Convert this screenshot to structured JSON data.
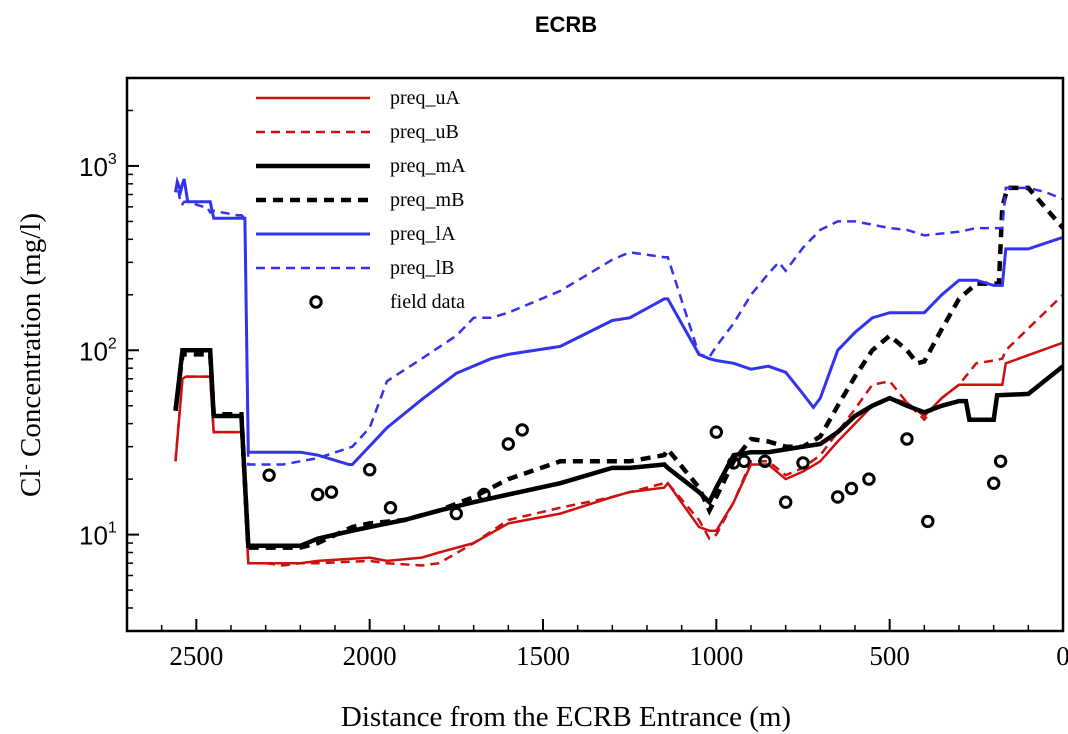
{
  "chart_data": {
    "type": "line",
    "title": "ECRB",
    "xlabel": "Distance from the ECRB Entrance (m)",
    "ylabel": "Concentration (mg/l)",
    "ylabel_ion": "Cl",
    "ylabel_sup": "-",
    "xlim": [
      2700,
      0
    ],
    "ylim": [
      3,
      3000
    ],
    "yscale": "log",
    "x_ticks": [
      "2500",
      "2000",
      "1500",
      "1000",
      "500",
      "0"
    ],
    "y_ticks": [
      {
        "base": "10",
        "exp": "1"
      },
      {
        "base": "10",
        "exp": "2"
      },
      {
        "base": "10",
        "exp": "3"
      }
    ],
    "legend_position": "top-left",
    "series": [
      {
        "name": "preq_uA",
        "color": "#cc1111",
        "style": "solid",
        "width": 2.5,
        "x": [
          2560,
          2540,
          2530,
          2480,
          2460,
          2450,
          2380,
          2370,
          2350,
          2300,
          2250,
          2200,
          2150,
          2000,
          1950,
          1850,
          1800,
          1700,
          1600,
          1450,
          1300,
          1250,
          1150,
          1140,
          1050,
          1020,
          1000,
          950,
          900,
          850,
          800,
          750,
          700,
          650,
          600,
          550,
          500,
          450,
          400,
          350,
          300,
          250,
          200,
          175,
          165,
          0
        ],
        "y": [
          25,
          70,
          72,
          72,
          72,
          36,
          36,
          36,
          7,
          7,
          7,
          7,
          7.2,
          7.5,
          7.2,
          7.5,
          8,
          9,
          11.5,
          13,
          16,
          17,
          18,
          19,
          11,
          10.5,
          10.5,
          15,
          24,
          24,
          20,
          22,
          25,
          32,
          40,
          50,
          55,
          52,
          44,
          55,
          65,
          65,
          65,
          65,
          85,
          110
        ]
      },
      {
        "name": "preq_uB",
        "color": "#cc1111",
        "style": "dashed",
        "width": 2.5,
        "x": [
          2560,
          2540,
          2530,
          2480,
          2460,
          2450,
          2380,
          2370,
          2350,
          2300,
          2250,
          2200,
          2150,
          2000,
          1950,
          1850,
          1800,
          1700,
          1600,
          1450,
          1300,
          1250,
          1150,
          1140,
          1050,
          1020,
          1000,
          950,
          900,
          850,
          800,
          750,
          700,
          650,
          600,
          550,
          500,
          450,
          400,
          350,
          300,
          250,
          200,
          175,
          165,
          0
        ],
        "y": [
          25,
          72,
          72,
          72,
          72,
          36,
          36,
          36,
          7,
          7,
          6.8,
          7,
          7,
          7.2,
          7,
          6.8,
          7,
          9,
          12,
          14,
          16,
          17,
          19,
          19,
          12,
          9.5,
          10,
          15,
          25,
          25,
          21,
          23,
          27,
          36,
          48,
          65,
          68,
          52,
          42,
          55,
          65,
          85,
          88,
          90,
          100,
          200
        ]
      },
      {
        "name": "preq_mA",
        "color": "#000000",
        "style": "solid",
        "width": 4.5,
        "x": [
          2560,
          2540,
          2530,
          2480,
          2460,
          2450,
          2380,
          2370,
          2350,
          2300,
          2250,
          2200,
          2150,
          2050,
          2000,
          1900,
          1800,
          1700,
          1600,
          1450,
          1300,
          1250,
          1150,
          1140,
          1050,
          1020,
          1000,
          950,
          900,
          850,
          800,
          750,
          700,
          650,
          600,
          550,
          500,
          450,
          400,
          350,
          300,
          280,
          270,
          200,
          190,
          100,
          0
        ],
        "y": [
          47,
          100,
          100,
          100,
          100,
          44,
          44,
          44,
          8.7,
          8.7,
          8.7,
          8.7,
          9.5,
          10.5,
          11,
          12,
          13.5,
          15,
          16.5,
          19,
          23,
          23,
          24,
          23,
          17,
          15,
          18,
          27,
          28,
          28,
          29,
          30,
          31,
          36,
          44,
          50,
          55,
          50,
          46,
          50,
          53,
          53,
          42,
          42,
          57,
          58,
          82
        ]
      },
      {
        "name": "preq_mB",
        "color": "#000000",
        "style": "dashed",
        "width": 4.5,
        "x": [
          2560,
          2540,
          2530,
          2480,
          2460,
          2450,
          2380,
          2370,
          2350,
          2300,
          2250,
          2200,
          2150,
          2050,
          2000,
          1900,
          1800,
          1700,
          1600,
          1450,
          1300,
          1250,
          1150,
          1140,
          1050,
          1020,
          1000,
          950,
          900,
          850,
          800,
          750,
          700,
          650,
          600,
          550,
          500,
          450,
          420,
          400,
          350,
          300,
          250,
          200,
          185,
          175,
          160,
          100,
          0
        ],
        "y": [
          47,
          95,
          95,
          95,
          95,
          45,
          45,
          45,
          8.5,
          8.5,
          8.5,
          8.5,
          9,
          11,
          11.5,
          12,
          13.5,
          16,
          20,
          25,
          25,
          25,
          27,
          29,
          18,
          13.5,
          16,
          25,
          33,
          32,
          30,
          30,
          34,
          50,
          72,
          100,
          120,
          100,
          85,
          87,
          130,
          190,
          230,
          230,
          230,
          600,
          760,
          760,
          460
        ]
      },
      {
        "name": "preq_lA",
        "color": "#3333ee",
        "style": "solid",
        "width": 3,
        "x": [
          2560,
          2555,
          2545,
          2540,
          2535,
          2525,
          2480,
          2470,
          2460,
          2450,
          2380,
          2370,
          2360,
          2350,
          2300,
          2250,
          2200,
          2150,
          2060,
          2050,
          1950,
          1850,
          1750,
          1650,
          1600,
          1450,
          1300,
          1250,
          1150,
          1140,
          1050,
          1020,
          1000,
          950,
          900,
          850,
          800,
          750,
          720,
          700,
          650,
          600,
          550,
          500,
          450,
          400,
          350,
          300,
          250,
          200,
          175,
          165,
          100,
          0
        ],
        "y": [
          720,
          820,
          730,
          800,
          850,
          640,
          640,
          640,
          640,
          520,
          520,
          520,
          520,
          28,
          28,
          28,
          28,
          27,
          24,
          24,
          38,
          54,
          75,
          90,
          95,
          105,
          145,
          150,
          190,
          190,
          95,
          90,
          88,
          85,
          79,
          82,
          76,
          58,
          49,
          55,
          100,
          125,
          150,
          160,
          160,
          160,
          200,
          240,
          240,
          225,
          225,
          355,
          355,
          410
        ]
      },
      {
        "name": "preq_lB",
        "color": "#3333ee",
        "style": "dashed",
        "width": 2.5,
        "x": [
          2560,
          2555,
          2545,
          2540,
          2535,
          2525,
          2480,
          2470,
          2460,
          2450,
          2380,
          2370,
          2360,
          2350,
          2300,
          2250,
          2200,
          2150,
          2050,
          2000,
          1950,
          1850,
          1750,
          1700,
          1650,
          1600,
          1450,
          1300,
          1250,
          1150,
          1140,
          1050,
          1020,
          1000,
          950,
          900,
          850,
          820,
          800,
          750,
          700,
          650,
          600,
          550,
          500,
          450,
          400,
          350,
          300,
          250,
          200,
          175,
          165,
          150,
          100,
          50,
          0
        ],
        "y": [
          720,
          800,
          620,
          620,
          640,
          640,
          600,
          600,
          560,
          570,
          540,
          540,
          520,
          24,
          24,
          24,
          25,
          26,
          30,
          38,
          68,
          90,
          120,
          150,
          150,
          160,
          210,
          310,
          340,
          320,
          320,
          95,
          92,
          105,
          140,
          200,
          260,
          300,
          270,
          360,
          450,
          500,
          500,
          480,
          460,
          450,
          420,
          430,
          440,
          460,
          460,
          460,
          760,
          760,
          760,
          720,
          660
        ]
      }
    ],
    "field_data": {
      "name": "field data",
      "x": [
        2290,
        2150,
        2110,
        2000,
        1940,
        1750,
        1670,
        1600,
        1560,
        1000,
        950,
        920,
        860,
        750,
        800,
        650,
        610,
        560,
        450,
        390,
        200,
        180
      ],
      "y": [
        21,
        16.5,
        17,
        22.5,
        14,
        13,
        16.5,
        31,
        37,
        36,
        24.5,
        25,
        25,
        24.5,
        15,
        16,
        17.8,
        20,
        33,
        11.8,
        19,
        25
      ]
    }
  }
}
